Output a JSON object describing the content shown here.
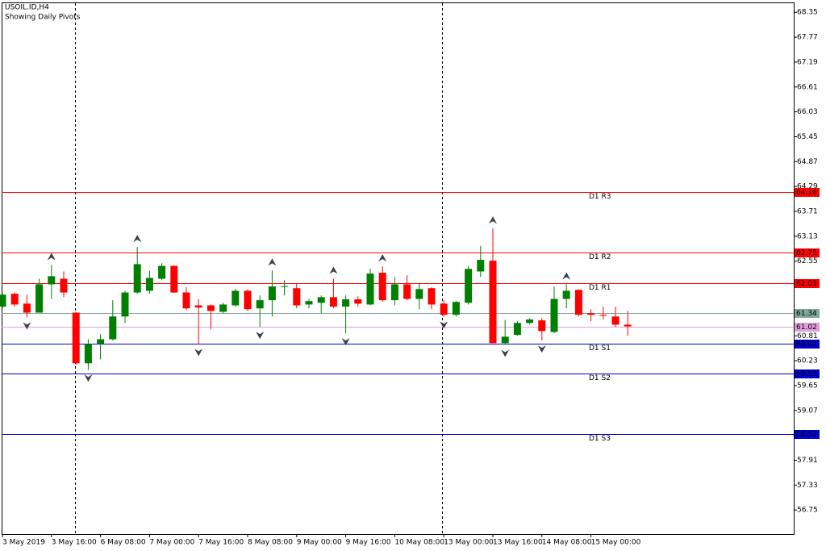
{
  "chart_data": {
    "type": "candlestick",
    "title": "USOIL.ID,H4",
    "subtitle": "Showing Daily Pivots",
    "categories": [
      "3 May 2019",
      null,
      null,
      null,
      "3 May 16:00",
      null,
      null,
      null,
      "6 May 08:00",
      null,
      null,
      null,
      "7 May 00:00",
      null,
      null,
      null,
      "7 May 16:00",
      null,
      null,
      null,
      "8 May 08:00",
      null,
      null,
      null,
      "9 May 00:00",
      null,
      null,
      null,
      "9 May 16:00",
      null,
      null,
      null,
      "10 May 08:00",
      null,
      null,
      null,
      "13 May 00:00",
      null,
      null,
      null,
      "13 May 16:00",
      null,
      null,
      null,
      "14 May 08:00",
      null,
      null,
      null,
      "15 May 00:00",
      null,
      null,
      null
    ],
    "open": [
      61.49,
      61.79,
      61.56,
      61.35,
      62.01,
      62.14,
      61.35,
      60.17,
      60.62,
      60.73,
      61.26,
      61.82,
      61.86,
      62.14,
      62.44,
      61.82,
      61.52,
      61.52,
      61.37,
      61.52,
      61.86,
      61.45,
      61.64,
      61.96,
      61.92,
      61.54,
      61.58,
      61.71,
      61.49,
      61.66,
      61.54,
      62.28,
      61.64,
      62.01,
      61.67,
      61.92,
      61.56,
      61.3,
      61.58,
      62.31,
      62.56,
      60.64,
      60.83,
      61.11,
      61.17,
      60.9,
      61.67,
      61.88,
      61.34,
      61.3,
      61.26,
      61.07
    ],
    "high": [
      61.82,
      61.82,
      61.77,
      62.14,
      62.46,
      62.31,
      61.36,
      60.73,
      60.85,
      61.64,
      61.86,
      62.88,
      62.33,
      62.5,
      62.46,
      61.94,
      61.67,
      61.54,
      61.58,
      61.9,
      61.9,
      61.75,
      62.33,
      62.11,
      62.03,
      61.67,
      61.75,
      62.14,
      61.75,
      61.73,
      62.37,
      62.43,
      62.18,
      62.22,
      62.05,
      61.94,
      61.64,
      61.62,
      62.43,
      62.9,
      63.31,
      61.18,
      61.15,
      61.22,
      61.22,
      61.96,
      62.01,
      61.9,
      61.43,
      61.49,
      61.49,
      61.39
    ],
    "low": [
      61.45,
      61.49,
      61.24,
      61.35,
      61.67,
      61.71,
      60.13,
      60.02,
      60.26,
      60.7,
      61.11,
      61.79,
      61.79,
      62.11,
      61.81,
      61.41,
      60.62,
      60.96,
      61.34,
      61.49,
      61.39,
      61.02,
      61.26,
      61.75,
      61.45,
      61.45,
      61.34,
      61.45,
      60.87,
      61.49,
      61.52,
      61.6,
      61.52,
      61.64,
      61.43,
      61.43,
      61.26,
      61.26,
      61.54,
      62.18,
      60.64,
      60.6,
      60.81,
      61.07,
      60.7,
      60.87,
      61.45,
      61.26,
      61.15,
      61.2,
      61.02,
      60.81
    ],
    "close": [
      61.77,
      61.54,
      61.35,
      62.01,
      62.2,
      61.82,
      60.17,
      60.62,
      60.73,
      61.26,
      61.82,
      62.48,
      62.16,
      62.44,
      61.82,
      61.45,
      61.47,
      61.39,
      61.54,
      61.86,
      61.43,
      61.64,
      61.96,
      61.97,
      61.52,
      61.62,
      61.71,
      61.49,
      61.66,
      61.56,
      62.26,
      61.64,
      62.01,
      61.67,
      61.9,
      61.54,
      61.3,
      61.6,
      62.37,
      62.58,
      60.64,
      60.79,
      61.11,
      61.19,
      60.92,
      61.67,
      61.86,
      61.3,
      61.3,
      61.28,
      61.07,
      61.03
    ],
    "up_color": "#008000",
    "down_color": "#ff0000",
    "ylim": [
      56.19,
      68.58
    ],
    "yticks": [
      68.35,
      67.77,
      67.19,
      66.61,
      66.03,
      65.45,
      64.87,
      64.29,
      63.71,
      63.13,
      62.55,
      60.81,
      60.23,
      59.65,
      59.07,
      57.91,
      57.33,
      56.75
    ],
    "pivots": [
      {
        "name": "D1 R3",
        "value": 64.16,
        "color": "#ff0000"
      },
      {
        "name": "D1 R2",
        "value": 62.75,
        "color": "#ff0000"
      },
      {
        "name": "D1 R1",
        "value": 62.03,
        "color": "#ff0000"
      },
      {
        "name": "D1 S1",
        "value": 60.62,
        "color": "#0000cd"
      },
      {
        "name": "D1 S2",
        "value": 59.93,
        "color": "#0000cd"
      },
      {
        "name": "D1 S3",
        "value": 58.52,
        "color": "#0000cd"
      }
    ],
    "price_lines": [
      {
        "value": 61.34,
        "color": "#7fa89c"
      },
      {
        "value": 61.02,
        "color": "#dda0dd"
      }
    ],
    "fractals_up": [
      4,
      11,
      22,
      27,
      31,
      40,
      46
    ],
    "fractals_down": [
      2,
      7,
      16,
      21,
      28,
      36,
      41,
      44
    ]
  }
}
